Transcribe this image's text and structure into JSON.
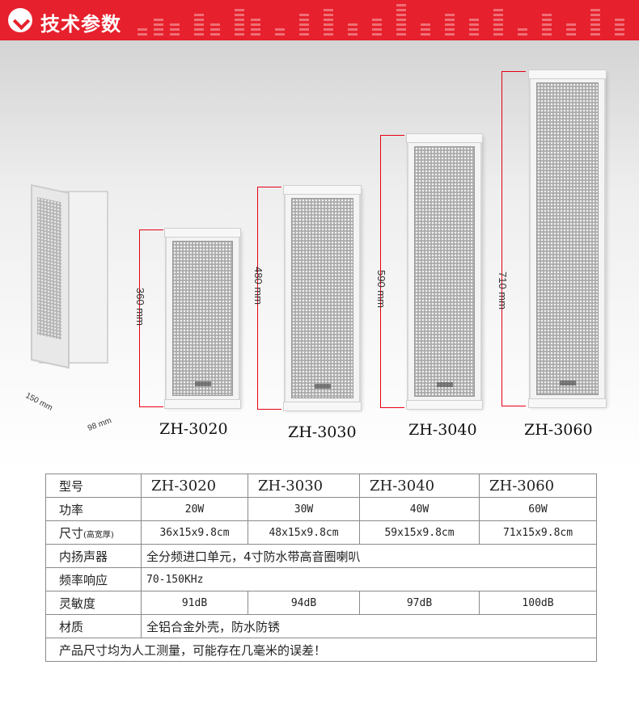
{
  "header": {
    "title": "技术参数",
    "icon": "check-circle-icon",
    "accent": "#e6202c"
  },
  "figure": {
    "side_labels": [
      "150 mm",
      "98 mm"
    ],
    "speakers": [
      {
        "model": "ZH-3020",
        "height_label": "360 mm"
      },
      {
        "model": "ZH-3030",
        "height_label": "480 mm"
      },
      {
        "model": "ZH-3040",
        "height_label": "590 mm"
      },
      {
        "model": "ZH-3060",
        "height_label": "710 mm"
      }
    ]
  },
  "table": {
    "model_label": "型号",
    "models": [
      "ZH-3020",
      "ZH-3030",
      "ZH-3040",
      "ZH-3060"
    ],
    "power_label": "功率",
    "power": [
      "20W",
      "30W",
      "40W",
      "60W"
    ],
    "size_label": "尺寸",
    "size_note": "(高宽厚)",
    "size": [
      "36x15x9.8cm",
      "48x15x9.8cm",
      "59x15x9.8cm",
      "71x15x9.8cm"
    ],
    "driver_label": "内扬声器",
    "driver": "全分频进口单元，4寸防水带高音圈喇叭",
    "freq_label": "频率响应",
    "freq": "70-150KHz",
    "sens_label": "灵敏度",
    "sens": [
      "91dB",
      "94dB",
      "97dB",
      "100dB"
    ],
    "material_label": "材质",
    "material": "全铝合金外壳，防水防锈",
    "note": "产品尺寸均为人工测量，可能存在几毫米的误差！"
  }
}
